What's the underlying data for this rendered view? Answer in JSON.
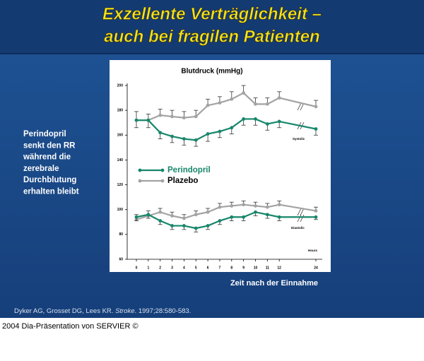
{
  "slide": {
    "title_lines": [
      "Exzellente Verträglichkeit –",
      "auch bei fragilen Patienten"
    ],
    "side_text": [
      "Perindopril",
      "senkt den RR",
      "während die",
      "zerebrale",
      "Durchblutung",
      "erhalten bleibt"
    ],
    "citation": {
      "authors": "Dyker AG, Grosset DG, Lees KR.",
      "journal": "Stroke",
      "rest": ". 1997;28:580-583."
    },
    "footer": "2004 Dia-Präsentation von SERVIER ©"
  },
  "chart_data": {
    "type": "line",
    "title": "Blutdruck (mmHg)",
    "x_label": "Zeit nach der Einnahme",
    "x_unit": "Hours",
    "categories": [
      "0",
      "1",
      "2",
      "3",
      "4",
      "5",
      "6",
      "7",
      "8",
      "9",
      "10",
      "11",
      "12",
      "24"
    ],
    "ylim": [
      60,
      200
    ],
    "yticks": [
      60,
      80,
      100,
      120,
      140,
      160,
      180,
      200
    ],
    "series": [
      {
        "name": "Perindopril",
        "color": "#17866a"
      },
      {
        "name": "Plazebo",
        "color": "#a3a3a3"
      }
    ],
    "groups": [
      {
        "label": "Systolic",
        "series": [
          {
            "values": [
              172,
              172,
              162,
              159,
              157,
              156,
              161,
              163,
              166,
              173,
              173,
              169,
              171,
              165
            ],
            "errors": [
              6,
              6,
              5,
              5,
              5,
              5,
              6,
              5,
              5,
              5,
              5,
              5,
              5,
              5
            ]
          },
          {
            "values": [
              172,
              172,
              176,
              175,
              174,
              175,
              184,
              186,
              189,
              194,
              185,
              185,
              190,
              183
            ],
            "errors": [
              7,
              5,
              5,
              5,
              5,
              5,
              5,
              5,
              6,
              6,
              5,
              5,
              5,
              5
            ]
          }
        ]
      },
      {
        "label": "Diastolic",
        "series": [
          {
            "values": [
              94,
              96,
              91,
              87,
              87,
              85,
              87,
              91,
              94,
              94,
              98,
              96,
              94,
              94
            ],
            "errors": [
              3,
              3,
              3,
              3,
              3,
              3,
              3,
              3,
              3,
              3,
              3,
              3,
              3,
              2
            ]
          },
          {
            "values": [
              92,
              95,
              98,
              95,
              93,
              96,
              98,
              102,
              103,
              104,
              103,
              102,
              104,
              99
            ],
            "errors": [
              4,
              4,
              3,
              3,
              3,
              3,
              3,
              3,
              3,
              3,
              3,
              3,
              3,
              3
            ]
          }
        ]
      }
    ]
  }
}
